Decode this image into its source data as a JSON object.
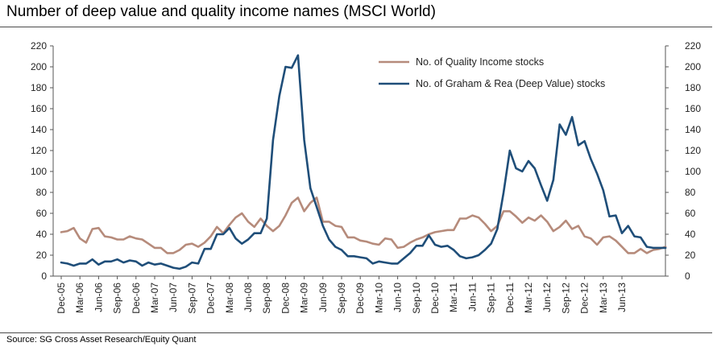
{
  "header": {
    "title": "Number of deep value and quality income names (MSCI World)"
  },
  "footer": {
    "source": "Source: SG Cross Asset Research/Equity Quant"
  },
  "chart_data": {
    "type": "line",
    "title": "Number of deep value and quality income names (MSCI World)",
    "xlabel": "",
    "ylabel": "",
    "ylim": [
      0,
      220
    ],
    "yticks": [
      0,
      20,
      40,
      60,
      80,
      100,
      120,
      140,
      160,
      180,
      200,
      220
    ],
    "y_axis_both_sides": true,
    "grid": false,
    "legend_position": "top-right",
    "x_tick_labels": [
      "Dec-05",
      "Mar-06",
      "Jun-06",
      "Sep-06",
      "Dec-06",
      "Mar-07",
      "Jun-07",
      "Sep-07",
      "Dec-07",
      "Mar-08",
      "Jun-08",
      "Sep-08",
      "Dec-08",
      "Mar-09",
      "Jun-09",
      "Sep-09",
      "Dec-09",
      "Mar-10",
      "Jun-10",
      "Sep-10",
      "Dec-10",
      "Mar-11",
      "Jun-11",
      "Sep-11",
      "Dec-11",
      "Mar-12",
      "Jun-12",
      "Sep-12",
      "Dec-12",
      "Mar-13",
      "Jun-13"
    ],
    "series": [
      {
        "name": "No. of Quality Income stocks",
        "color": "#b68b7b",
        "values": [
          42,
          43,
          46,
          36,
          32,
          45,
          46,
          38,
          37,
          35,
          35,
          38,
          36,
          35,
          31,
          27,
          27,
          22,
          22,
          25,
          30,
          31,
          28,
          32,
          38,
          47,
          41,
          49,
          56,
          60,
          52,
          47,
          55,
          48,
          43,
          48,
          58,
          70,
          75,
          62,
          70,
          75,
          52,
          52,
          48,
          47,
          37,
          37,
          34,
          33,
          31,
          30,
          36,
          35,
          27,
          28,
          32,
          35,
          37,
          40,
          42,
          43,
          44,
          44,
          55,
          55,
          58,
          56,
          50,
          43,
          48,
          62,
          62,
          57,
          51,
          56,
          53,
          58,
          52,
          43,
          47,
          53,
          45,
          48,
          38,
          36,
          30,
          37,
          38,
          34,
          28,
          22,
          22,
          26,
          22,
          25,
          26,
          28
        ]
      },
      {
        "name": "No. of Graham & Rea (Deep Value) stocks",
        "color": "#1f4e79",
        "values": [
          13,
          12,
          10,
          12,
          12,
          16,
          11,
          14,
          14,
          16,
          13,
          15,
          14,
          10,
          13,
          11,
          12,
          10,
          8,
          7,
          9,
          13,
          12,
          26,
          26,
          40,
          40,
          46,
          36,
          31,
          35,
          41,
          41,
          55,
          130,
          172,
          200,
          199,
          211,
          130,
          84,
          66,
          48,
          35,
          28,
          25,
          19,
          19,
          18,
          17,
          12,
          14,
          13,
          12,
          12,
          17,
          22,
          29,
          29,
          39,
          30,
          28,
          29,
          25,
          19,
          17,
          18,
          20,
          25,
          31,
          45,
          80,
          120,
          103,
          100,
          110,
          103,
          87,
          72,
          92,
          145,
          135,
          152,
          125,
          129,
          112,
          98,
          82,
          57,
          58,
          41,
          48,
          38,
          37,
          28,
          27,
          27,
          27
        ]
      }
    ]
  }
}
